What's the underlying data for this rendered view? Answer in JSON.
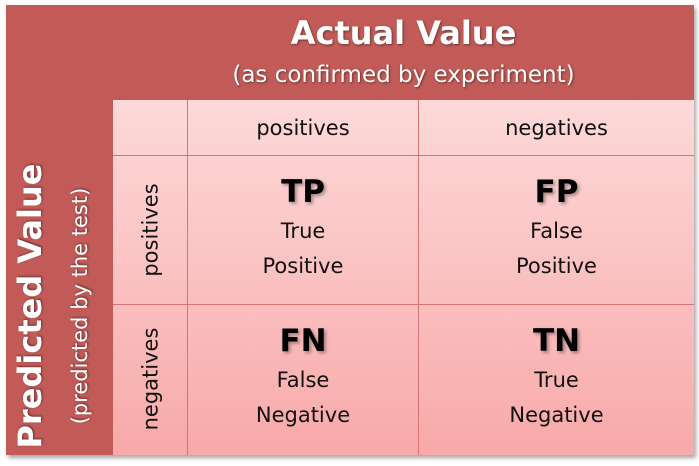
{
  "colors": {
    "frame": "#c25b57",
    "cell_top": "#fdd9d9",
    "cell_bottom": "#f8a9a9",
    "grid": "#d77373"
  },
  "actual": {
    "title": "Actual Value",
    "subtitle": "(as confirmed by experiment)"
  },
  "predicted": {
    "title": "Predicted Value",
    "subtitle": "(predicted by the test)"
  },
  "columns": [
    "positives",
    "negatives"
  ],
  "rows": [
    "positives",
    "negatives"
  ],
  "cells": [
    {
      "abbr": "TP",
      "line1": "True",
      "line2": "Positive"
    },
    {
      "abbr": "FP",
      "line1": "False",
      "line2": "Positive"
    },
    {
      "abbr": "FN",
      "line1": "False",
      "line2": "Negative"
    },
    {
      "abbr": "TN",
      "line1": "True",
      "line2": "Negative"
    }
  ]
}
